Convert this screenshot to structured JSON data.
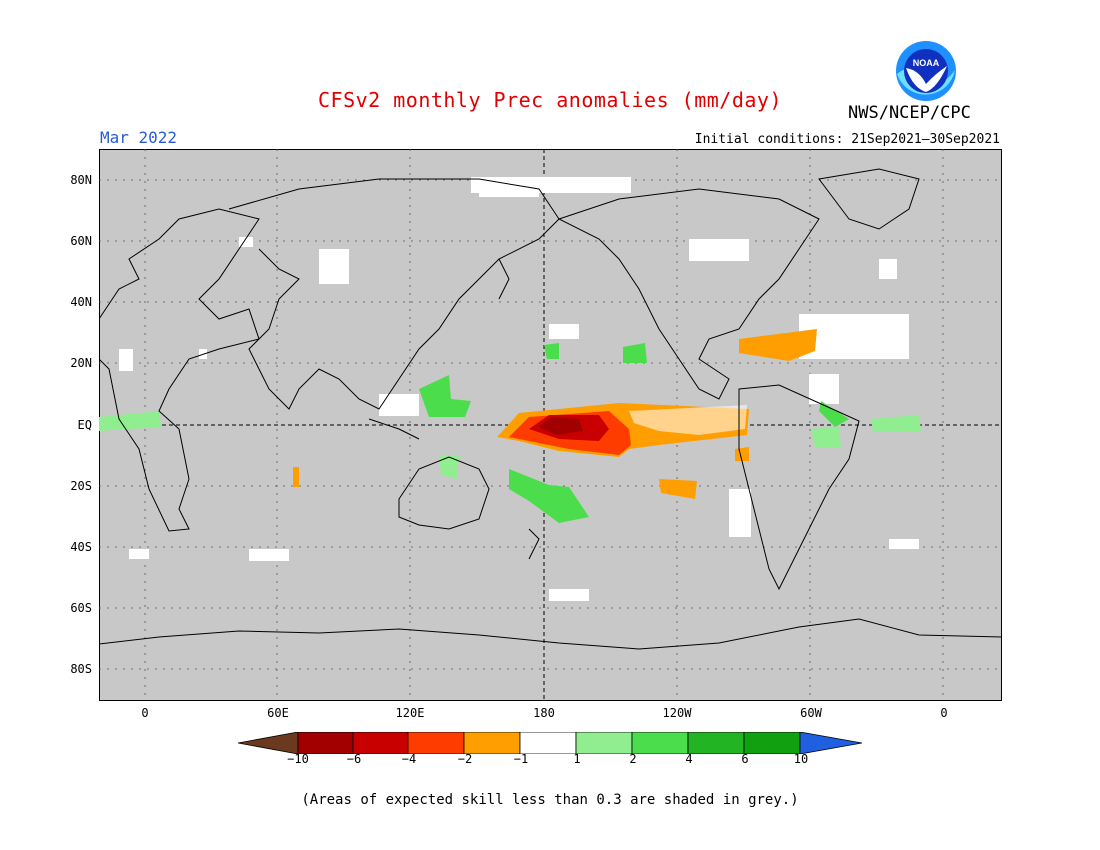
{
  "header": {
    "title": "CFSv2 monthly Prec anomalies (mm/day)",
    "month": "Mar 2022",
    "initial_conditions": "Initial conditions: 21Sep2021–30Sep2021",
    "agency": "NWS/NCEP/CPC",
    "logo_text": "NOAA"
  },
  "map": {
    "lat_labels": [
      "80N",
      "60N",
      "40N",
      "20N",
      "EQ",
      "20S",
      "40S",
      "60S",
      "80S"
    ],
    "lon_labels": [
      "0",
      "60E",
      "120E",
      "180",
      "120W",
      "60W",
      "0"
    ],
    "background_color": "#c8c8c8"
  },
  "colorbar": {
    "labels": [
      "−10",
      "−6",
      "−4",
      "−2",
      "−1",
      "1",
      "2",
      "4",
      "6",
      "10"
    ],
    "colors": [
      "#6b3a1e",
      "#a00000",
      "#c80000",
      "#ff3c00",
      "#ff9e00",
      "#ffffff",
      "#90ee90",
      "#4cdd4c",
      "#22b422",
      "#10a010",
      "#2060e0"
    ]
  },
  "footnote": "(Areas of expected skill less than 0.3 are shaded in grey.)"
}
